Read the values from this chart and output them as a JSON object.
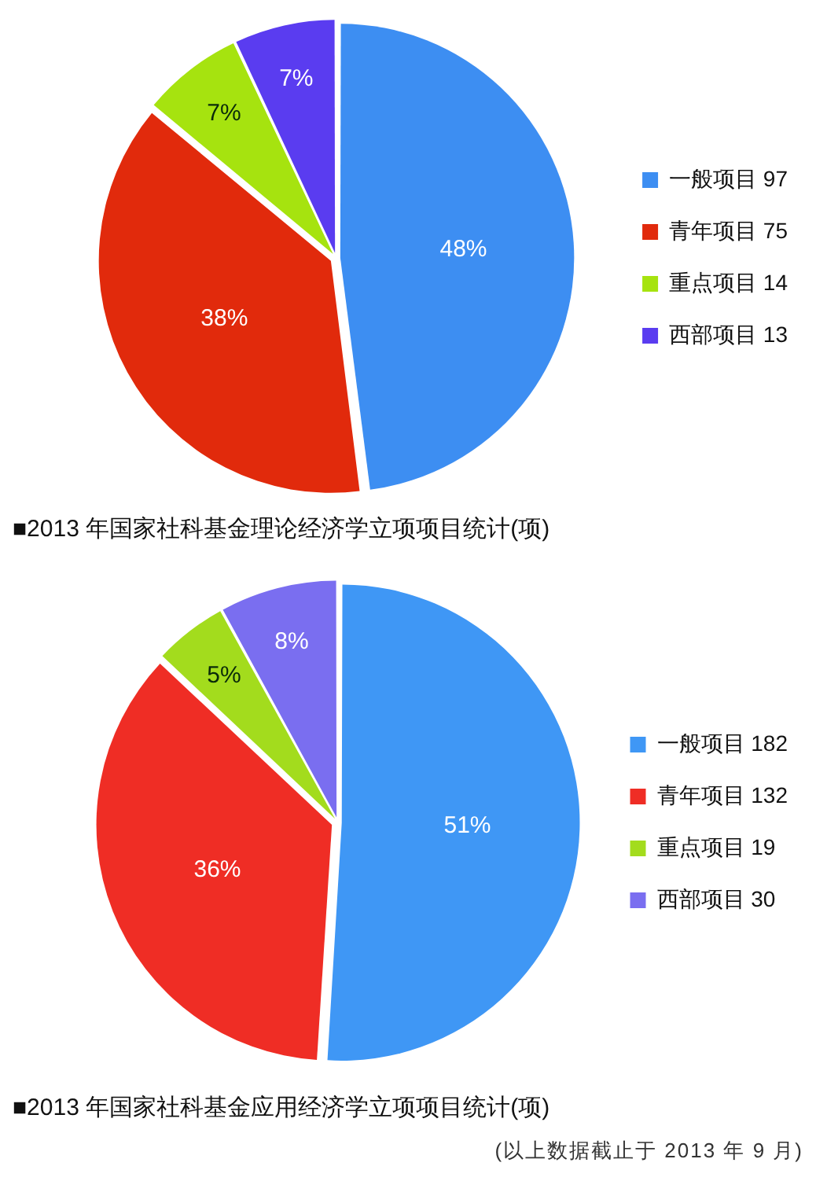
{
  "chart_data": [
    {
      "type": "pie",
      "title": "■2013 年国家社科基金理论经济学立项项目统计(项)",
      "categories": [
        "一般项目 97",
        "青年项目 75",
        "重点项目 14",
        "西部项目 13"
      ],
      "values": [
        48,
        38,
        7,
        7
      ],
      "colors": [
        "#3d8ef2",
        "#e12a0c",
        "#a6e30f",
        "#5a3cf0"
      ],
      "value_labels": [
        "48%",
        "38%",
        "7%",
        "7%"
      ],
      "legend": "right"
    },
    {
      "type": "pie",
      "title": "■2013 年国家社科基金应用经济学立项项目统计(项)",
      "categories": [
        "一般项目 182",
        "青年项目 132",
        "重点项目 19",
        "西部项目 30"
      ],
      "values": [
        51,
        36,
        5,
        8
      ],
      "colors": [
        "#3f97f5",
        "#ef2d25",
        "#a3dc1d",
        "#7a6ef0"
      ],
      "value_labels": [
        "51%",
        "36%",
        "5%",
        "8%"
      ],
      "legend": "right",
      "annotations": [
        "(以上数据截止于 2013 年 9 月)"
      ]
    }
  ]
}
